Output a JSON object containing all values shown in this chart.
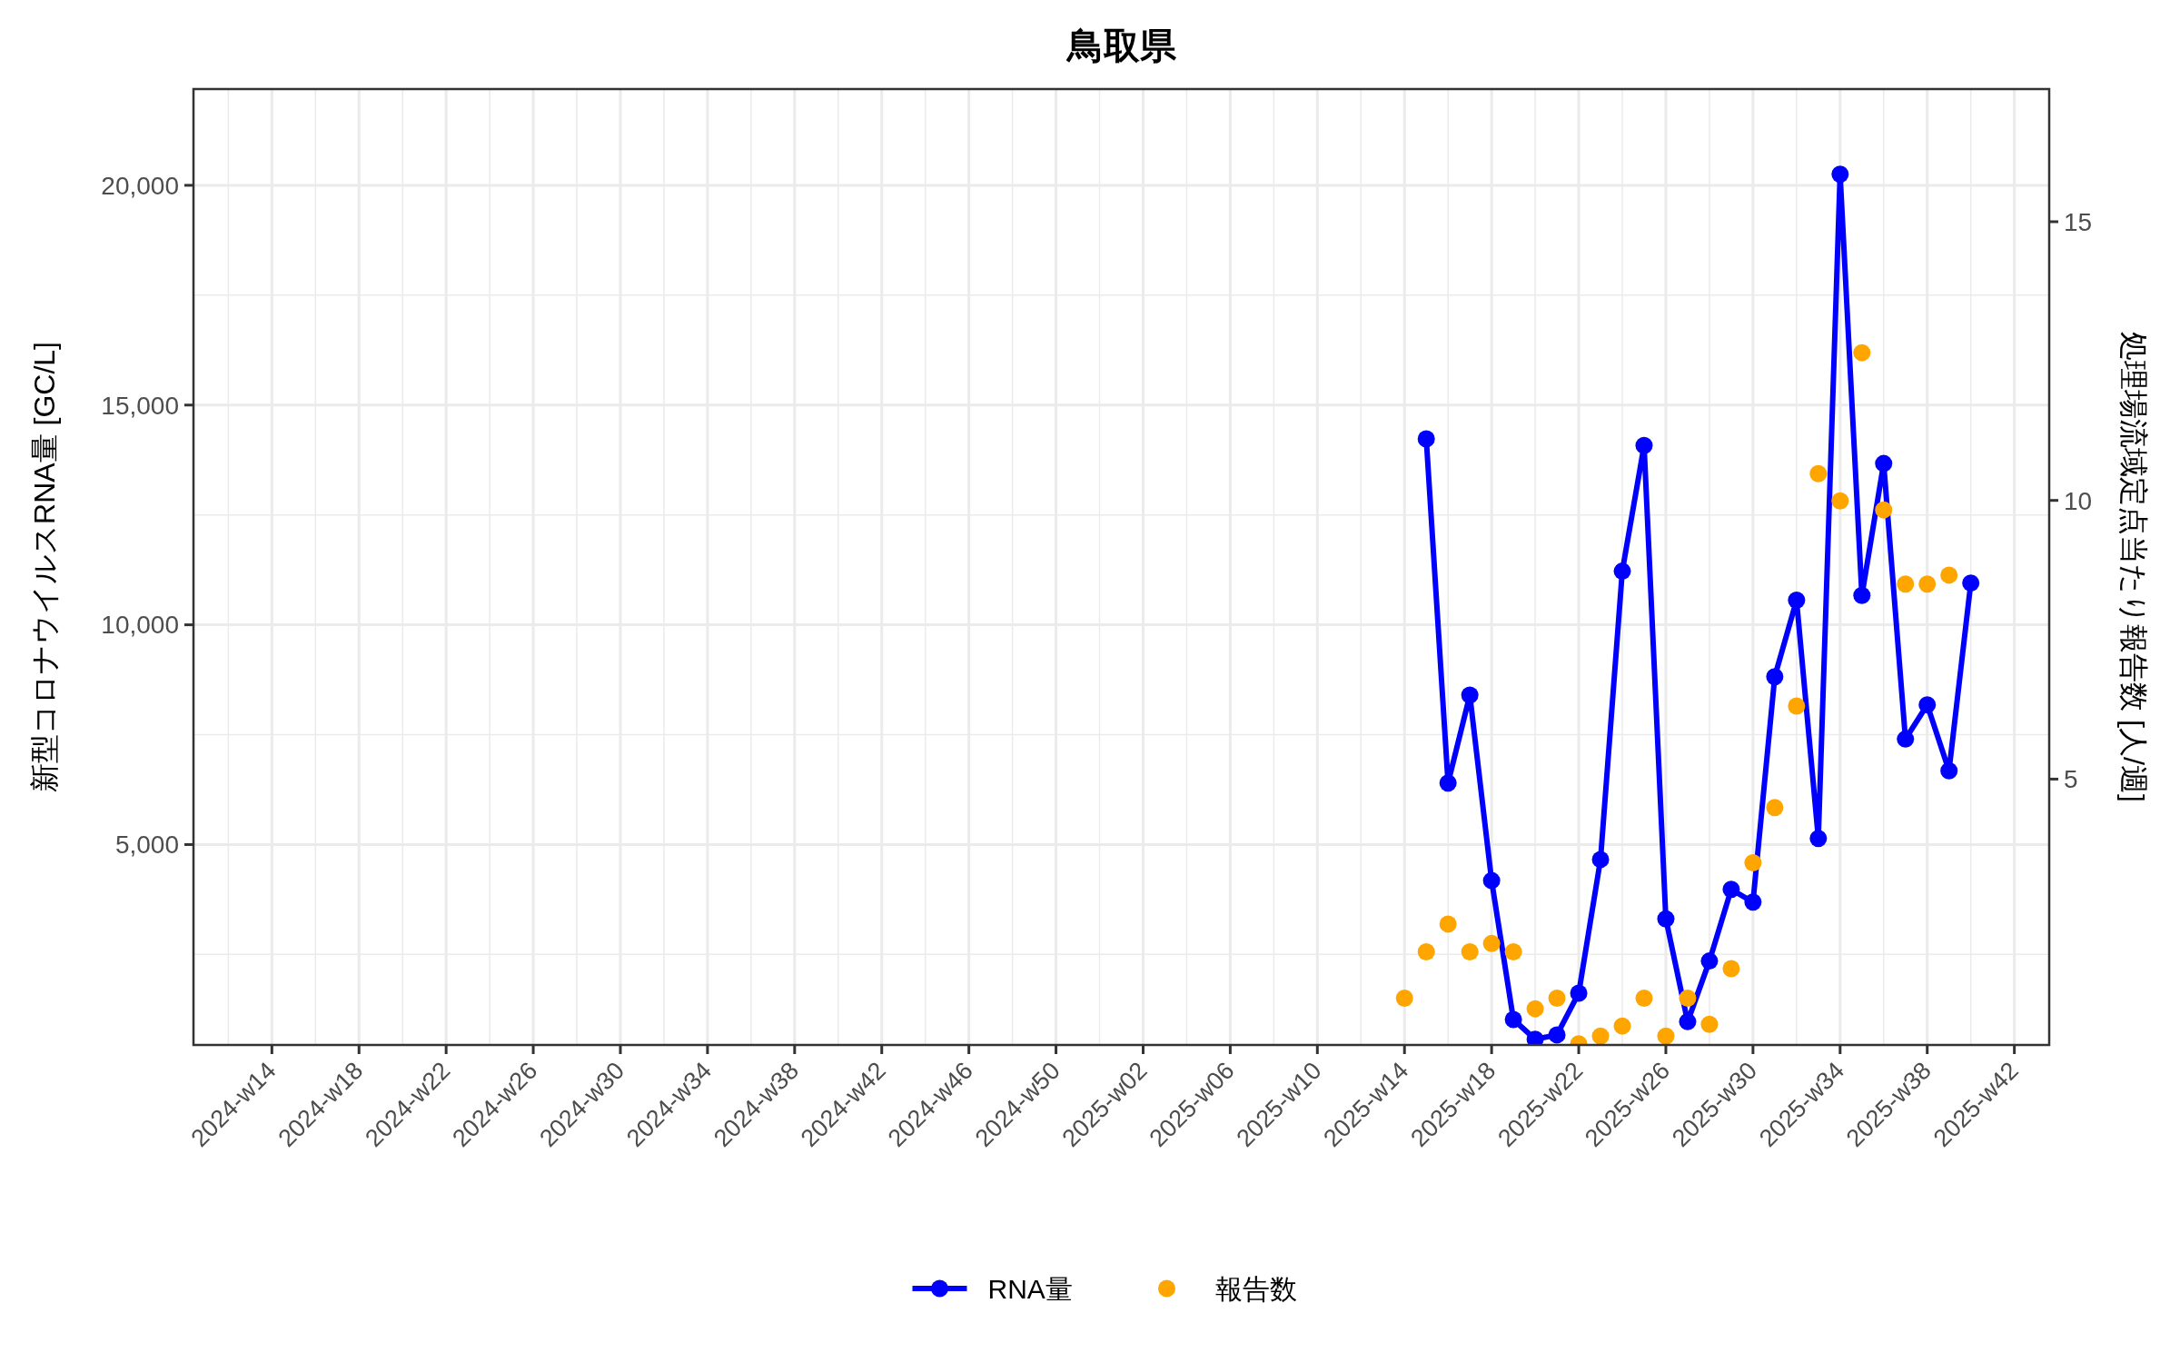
{
  "chart_data": {
    "type": "line",
    "title": "鳥取県",
    "ylabel": "新型コロナウイルスRNA量 [GC/L]",
    "y2label": "処理場流域定点当たり報告数 [人/週]",
    "categories": [
      null,
      null,
      null,
      "2024-w14",
      null,
      null,
      null,
      "2024-w18",
      null,
      null,
      null,
      "2024-w22",
      null,
      null,
      null,
      "2024-w26",
      null,
      null,
      null,
      "2024-w30",
      null,
      null,
      null,
      "2024-w34",
      null,
      null,
      null,
      "2024-w38",
      null,
      null,
      null,
      "2024-w42",
      null,
      null,
      null,
      "2024-w46",
      null,
      null,
      null,
      "2024-w50",
      null,
      null,
      null,
      "2025-w02",
      null,
      null,
      null,
      "2025-w06",
      null,
      null,
      null,
      "2025-w10",
      null,
      null,
      null,
      "2025-w14",
      null,
      null,
      null,
      "2025-w18",
      null,
      null,
      null,
      "2025-w22",
      null,
      null,
      null,
      "2025-w26",
      null,
      null,
      null,
      "2025-w30",
      null,
      null,
      null,
      "2025-w34",
      null,
      null,
      null,
      "2025-w38",
      null,
      null,
      null,
      "2025-w42",
      null
    ],
    "ylim": [
      440,
      22190
    ],
    "yticks": [
      {
        "value": 5000,
        "label": "5,000"
      },
      {
        "value": 10000,
        "label": "10,000"
      },
      {
        "value": 15000,
        "label": "15,000"
      },
      {
        "value": 20000,
        "label": "20,000"
      }
    ],
    "y2lim": [
      0.23,
      17.38
    ],
    "y2ticks": [
      5,
      10,
      15
    ],
    "grid": true,
    "legend": "bottom",
    "series": [
      {
        "name": "RNA量",
        "type": "line",
        "color": "#0000ff",
        "marker": "circle",
        "line_style": "solid",
        "values": [
          null,
          null,
          null,
          null,
          null,
          null,
          null,
          null,
          null,
          null,
          null,
          null,
          null,
          null,
          null,
          null,
          null,
          null,
          null,
          null,
          null,
          null,
          null,
          null,
          null,
          null,
          null,
          null,
          null,
          null,
          null,
          null,
          null,
          null,
          null,
          null,
          null,
          null,
          null,
          null,
          null,
          null,
          null,
          null,
          null,
          null,
          null,
          null,
          null,
          null,
          null,
          null,
          null,
          null,
          null,
          null,
          14230,
          6400,
          8400,
          4180,
          1020,
          570,
          670,
          1620,
          4660,
          11220,
          14080,
          3310,
          970,
          2350,
          3980,
          3690,
          8820,
          10560,
          5140,
          20250,
          10670,
          13670,
          7400,
          8180,
          6680,
          10950,
          null,
          null,
          null
        ]
      },
      {
        "name": "報告数",
        "type": "scatter",
        "axis": "y2",
        "color": "#ffa500",
        "marker": "circle",
        "values": [
          null,
          null,
          null,
          null,
          null,
          null,
          null,
          null,
          null,
          null,
          null,
          null,
          null,
          null,
          null,
          null,
          null,
          null,
          null,
          null,
          null,
          null,
          null,
          null,
          null,
          null,
          null,
          null,
          null,
          null,
          null,
          null,
          null,
          null,
          null,
          null,
          null,
          null,
          null,
          null,
          null,
          null,
          null,
          null,
          null,
          null,
          null,
          null,
          null,
          null,
          null,
          null,
          null,
          null,
          null,
          1.07,
          1.9,
          2.4,
          1.9,
          2.05,
          1.9,
          0.88,
          1.07,
          0.25,
          0.39,
          0.57,
          1.07,
          0.39,
          1.07,
          0.6,
          1.6,
          3.5,
          4.49,
          6.31,
          10.48,
          9.99,
          12.65,
          9.83,
          8.5,
          8.5,
          8.66,
          null,
          null,
          null,
          null
        ]
      }
    ]
  }
}
